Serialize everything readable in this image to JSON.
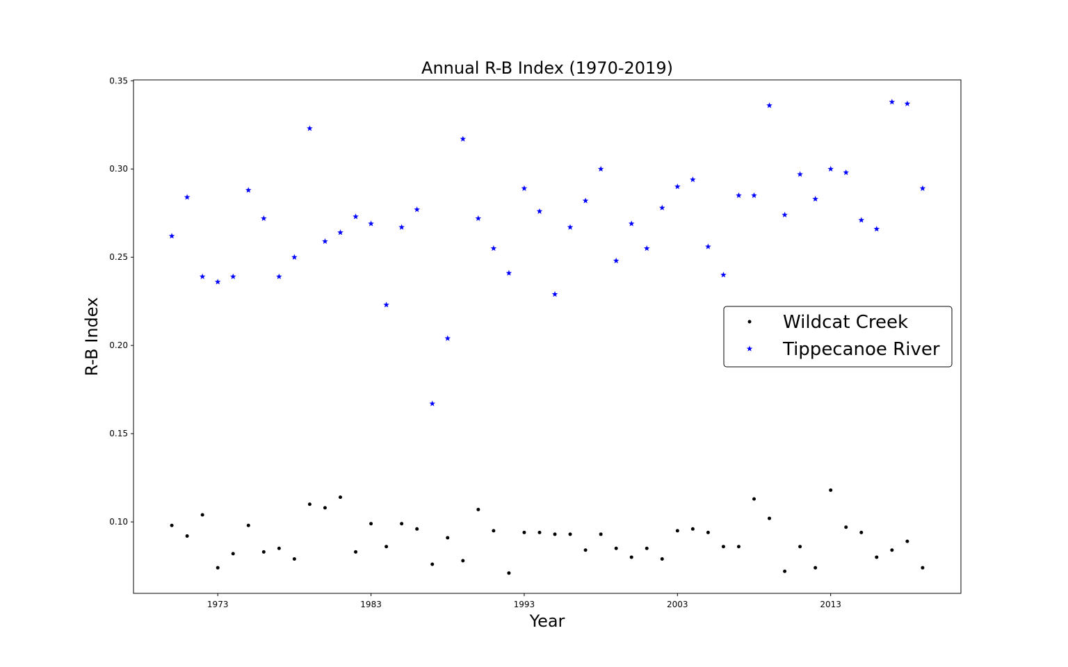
{
  "chart_data": {
    "type": "scatter",
    "title": "Annual R-B Index (1970-2019)",
    "xlabel": "Year",
    "ylabel": "R-B Index",
    "xlim": [
      1967.5,
      2021.5
    ],
    "ylim": [
      0.0595,
      0.3505
    ],
    "xticks": [
      1973,
      1983,
      1993,
      2003,
      2013
    ],
    "yticks": [
      0.1,
      0.15,
      0.2,
      0.25,
      0.3,
      0.35
    ],
    "ytick_labels": [
      "0.10",
      "0.15",
      "0.20",
      "0.25",
      "0.30",
      "0.35"
    ],
    "grid": false,
    "legend_position": "center-right",
    "x": [
      1970,
      1971,
      1972,
      1973,
      1974,
      1975,
      1976,
      1977,
      1978,
      1979,
      1980,
      1981,
      1982,
      1983,
      1984,
      1985,
      1986,
      1987,
      1988,
      1989,
      1990,
      1991,
      1992,
      1993,
      1994,
      1995,
      1996,
      1997,
      1998,
      1999,
      2000,
      2001,
      2002,
      2003,
      2004,
      2005,
      2006,
      2007,
      2008,
      2009,
      2010,
      2011,
      2012,
      2013,
      2014,
      2015,
      2016,
      2017,
      2018,
      2019
    ],
    "series": [
      {
        "name": "Wildcat Creek",
        "marker": "dot",
        "color": "#000000",
        "values": [
          0.098,
          0.092,
          0.104,
          0.074,
          0.082,
          0.098,
          0.083,
          0.085,
          0.079,
          0.11,
          0.108,
          0.114,
          0.083,
          0.099,
          0.086,
          0.099,
          0.096,
          0.076,
          0.091,
          0.078,
          0.107,
          0.095,
          0.071,
          0.094,
          0.094,
          0.093,
          0.093,
          0.084,
          0.093,
          0.085,
          0.08,
          0.085,
          0.079,
          0.095,
          0.096,
          0.094,
          0.086,
          0.086,
          0.113,
          0.102,
          0.072,
          0.086,
          0.074,
          0.118,
          0.097,
          0.094,
          0.08,
          0.084,
          0.089,
          0.074
        ]
      },
      {
        "name": "Tippecanoe River",
        "marker": "star",
        "color": "#0000ff",
        "values": [
          0.262,
          0.284,
          0.239,
          0.236,
          0.239,
          0.288,
          0.272,
          0.239,
          0.25,
          0.323,
          0.259,
          0.264,
          0.273,
          0.269,
          0.223,
          0.267,
          0.277,
          0.167,
          0.204,
          0.317,
          0.272,
          0.255,
          0.241,
          0.289,
          0.276,
          0.229,
          0.267,
          0.282,
          0.3,
          0.248,
          0.269,
          0.255,
          0.278,
          0.29,
          0.294,
          0.256,
          0.24,
          0.285,
          0.285,
          0.336,
          0.274,
          0.297,
          0.283,
          0.3,
          0.298,
          0.271,
          0.266,
          0.338,
          0.337,
          0.289
        ]
      }
    ]
  }
}
